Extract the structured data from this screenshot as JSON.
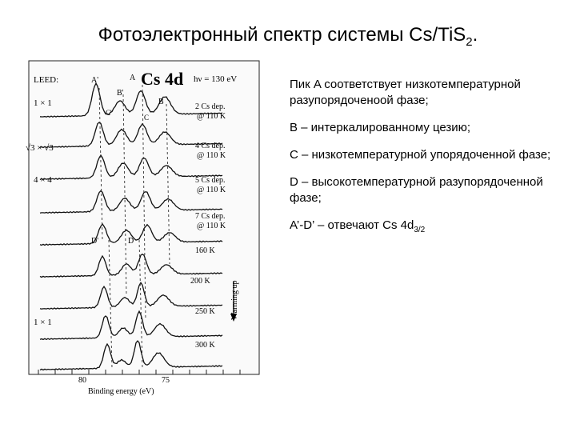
{
  "title": {
    "main": "Фотоэлектронный спектр системы Cs/TiS",
    "sub": "2",
    "end": "."
  },
  "figure": {
    "title": "Cs 4d",
    "photon_energy": "hν = 130 eV",
    "leed_label": "LEED:",
    "leed_patterns": [
      "1 × 1",
      "√3 × √3",
      "4 × 4",
      "1 × 1"
    ],
    "peak_labels": {
      "A_prime": "A'",
      "A": "A",
      "B_prime": "B'",
      "B": "B",
      "C_prime": "C'",
      "C": "C",
      "D_prime": "D'",
      "D": "D"
    },
    "curve_labels": [
      [
        "2 Cs dep.",
        "@ 110 K"
      ],
      [
        "4 Cs dep.",
        "@ 110 K"
      ],
      [
        "5 Cs dep.",
        "@ 110 K"
      ],
      [
        "7 Cs dep.",
        "@ 110 K"
      ],
      [
        "160 K"
      ],
      [
        "200 K"
      ],
      [
        "250 K"
      ],
      [
        "300 K"
      ]
    ],
    "warming_label": "Warming up",
    "x_ticks": [
      "80",
      "75"
    ],
    "xlabel": "Binding energy (eV)"
  },
  "notes": {
    "p1": "Пик A соответствует низкотемпературной разупорядоченоой фазе;",
    "p2": "B – интеркалированному цезию;",
    "p3": "C – низкотемпературной упорядоченной фазе;",
    "p4": "D – высокотемпературной разупорядоченной фазе;",
    "p5_main": "A’-D’ – отвечают Cs 4d",
    "p5_sub": "3/2"
  }
}
